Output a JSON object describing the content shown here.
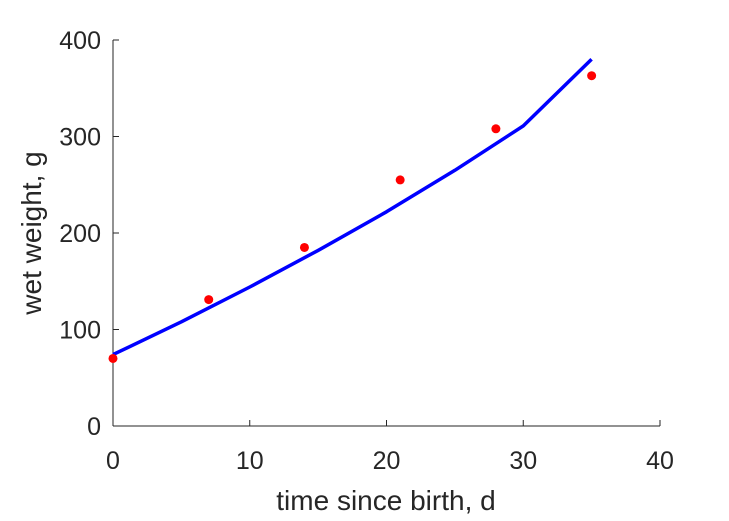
{
  "chart_data": {
    "type": "scatter",
    "xlabel": "time since birth, d",
    "ylabel": "wet weight, g",
    "xlim": [
      0,
      40
    ],
    "ylim": [
      0,
      400
    ],
    "xticks": [
      0,
      10,
      20,
      30,
      40
    ],
    "yticks": [
      0,
      100,
      200,
      300,
      400
    ],
    "grid": false,
    "legend": "none",
    "series": [
      {
        "kind": "points",
        "color": "#ff0000",
        "x": [
          0,
          7,
          14,
          21,
          28,
          35
        ],
        "y": [
          70,
          131,
          185,
          255,
          308,
          363
        ]
      },
      {
        "kind": "line",
        "color": "#0000ff",
        "x": [
          0,
          5,
          10,
          15,
          20,
          25,
          30,
          35
        ],
        "y": [
          74,
          108,
          144,
          182,
          222,
          265,
          311,
          380
        ]
      }
    ]
  }
}
